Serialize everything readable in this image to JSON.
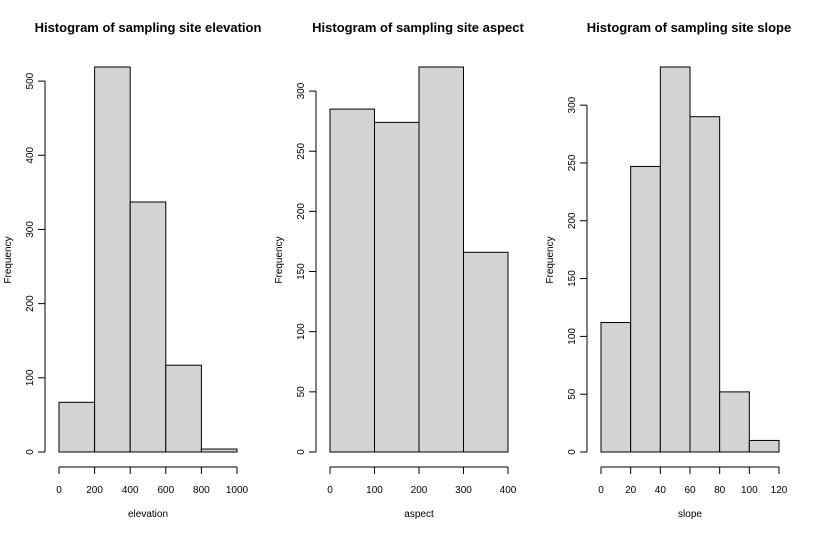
{
  "figure": {
    "background": "#ffffff"
  },
  "chart_data": [
    {
      "type": "bar",
      "title": "Histogram of sampling site elevation",
      "xlabel": "elevation",
      "ylabel": "Frequency",
      "bar_color": "#d3d3d3",
      "bins": [
        [
          0,
          200
        ],
        [
          200,
          400
        ],
        [
          400,
          600
        ],
        [
          600,
          800
        ],
        [
          800,
          1000
        ]
      ],
      "values": [
        67,
        519,
        337,
        117,
        4
      ],
      "xlim": [
        0,
        1000
      ],
      "ylim": [
        0,
        519
      ],
      "xticks": [
        0,
        200,
        400,
        600,
        800,
        1000
      ],
      "yticks": [
        0,
        100,
        200,
        300,
        400,
        500
      ],
      "grid": false
    },
    {
      "type": "bar",
      "title": "Histogram of sampling site aspect",
      "xlabel": "aspect",
      "ylabel": "Frequency",
      "bar_color": "#d3d3d3",
      "bins": [
        [
          0,
          100
        ],
        [
          100,
          200
        ],
        [
          200,
          300
        ],
        [
          300,
          400
        ]
      ],
      "values": [
        285,
        274,
        320,
        166
      ],
      "xlim": [
        0,
        400
      ],
      "ylim": [
        0,
        320
      ],
      "xticks": [
        0,
        100,
        200,
        300,
        400
      ],
      "yticks": [
        0,
        50,
        100,
        150,
        200,
        250,
        300
      ],
      "grid": false
    },
    {
      "type": "bar",
      "title": "Histogram of sampling site slope",
      "xlabel": "slope",
      "ylabel": "Frequency",
      "bar_color": "#d3d3d3",
      "bins": [
        [
          0,
          20
        ],
        [
          20,
          40
        ],
        [
          40,
          60
        ],
        [
          60,
          80
        ],
        [
          80,
          100
        ],
        [
          100,
          120
        ]
      ],
      "values": [
        112,
        247,
        333,
        290,
        52,
        10
      ],
      "xlim": [
        0,
        120
      ],
      "ylim": [
        0,
        333
      ],
      "xticks": [
        0,
        20,
        40,
        60,
        80,
        100,
        120
      ],
      "yticks": [
        0,
        50,
        100,
        150,
        200,
        250,
        300
      ],
      "grid": false
    }
  ]
}
